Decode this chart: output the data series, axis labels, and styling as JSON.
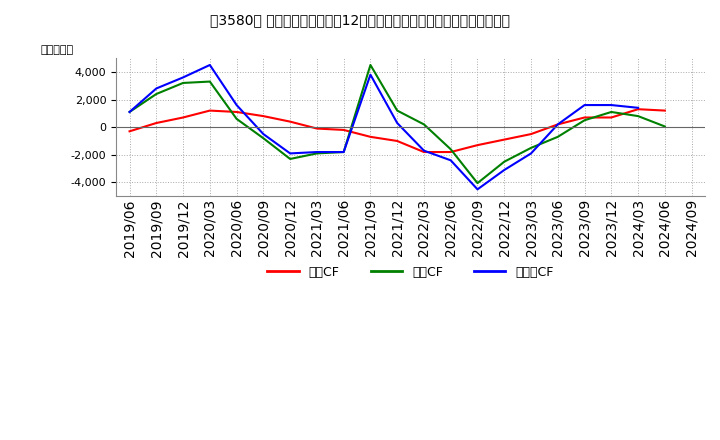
{
  "title": "［3580］ キャッシュフローの12か月移動合計の対前年同期増減額の推移",
  "ylabel": "（百万円）",
  "background_color": "#ffffff",
  "plot_bg_color": "#f0f0f0",
  "grid_color": "#aaaaaa",
  "x_labels": [
    "2019/06",
    "2019/09",
    "2019/12",
    "2020/03",
    "2020/06",
    "2020/09",
    "2020/12",
    "2021/03",
    "2021/06",
    "2021/09",
    "2021/12",
    "2022/03",
    "2022/06",
    "2022/09",
    "2022/12",
    "2023/03",
    "2023/06",
    "2023/09",
    "2023/12",
    "2024/03",
    "2024/06",
    "2024/09"
  ],
  "eigyo_values": [
    -300,
    300,
    700,
    1200,
    1100,
    800,
    400,
    -100,
    -200,
    -700,
    -1000,
    -1800,
    -1800,
    -1300,
    -900,
    -500,
    200,
    700,
    700,
    1300,
    1200,
    null
  ],
  "toshi_values": [
    1100,
    2400,
    3200,
    3300,
    600,
    -800,
    -2300,
    -1900,
    -1800,
    4500,
    1200,
    200,
    -1600,
    -4050,
    -2500,
    -1500,
    -700,
    500,
    1100,
    800,
    50,
    null
  ],
  "free_values": [
    1100,
    2800,
    3600,
    4500,
    1600,
    -500,
    -1900,
    -1800,
    -1800,
    3800,
    300,
    -1700,
    -2400,
    -4500,
    -3100,
    -1900,
    200,
    1600,
    1600,
    1400,
    null,
    null
  ],
  "eigyo_color": "#ff0000",
  "toshi_color": "#008000",
  "free_color": "#0000ff",
  "eigyo_label": "営業CF",
  "toshi_label": "投資CF",
  "free_label": "フリーCF",
  "ylim": [
    -5000,
    5000
  ],
  "yticks": [
    -4000,
    -2000,
    0,
    2000,
    4000
  ]
}
